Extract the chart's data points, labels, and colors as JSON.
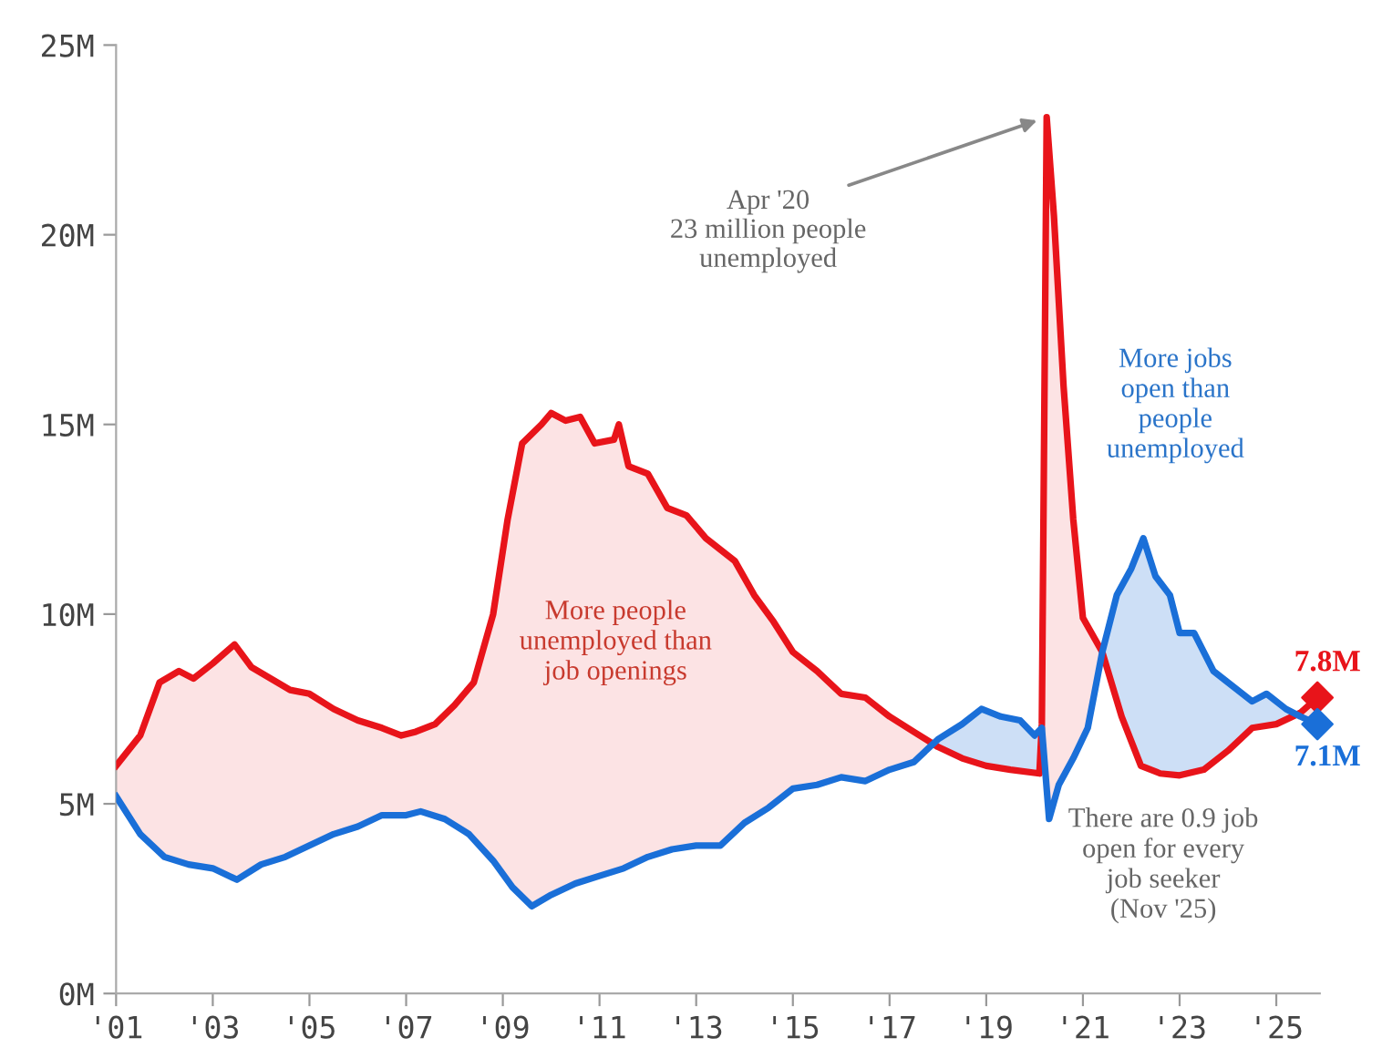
{
  "chart_data": {
    "type": "line",
    "x": [
      2001.0,
      2001.5,
      2001.9,
      2002.3,
      2002.6,
      2003.0,
      2003.45,
      2003.8,
      2004.2,
      2004.6,
      2005.0,
      2005.5,
      2006.0,
      2006.5,
      2006.9,
      2007.2,
      2007.6,
      2008.0,
      2008.4,
      2008.8,
      2009.1,
      2009.4,
      2009.8,
      2010.0,
      2010.3,
      2010.6,
      2010.9,
      2011.3,
      2011.4,
      2011.6,
      2012.0,
      2012.4,
      2012.8,
      2013.2,
      2013.5,
      2013.8,
      2014.2,
      2014.6,
      2015.0,
      2015.5,
      2016.0,
      2016.5,
      2017.0,
      2017.5,
      2018.0,
      2018.5,
      2019.0,
      2019.5,
      2020.1,
      2020.15,
      2020.25,
      2020.4,
      2020.6,
      2020.8,
      2021.0,
      2021.4,
      2021.8,
      2022.2,
      2022.6,
      2023.0,
      2023.5,
      2024.0,
      2024.5,
      2025.0,
      2025.5,
      2025.85
    ],
    "series": [
      {
        "color": "#e8141a",
        "values": [
          6.0,
          6.8,
          8.2,
          8.5,
          8.3,
          8.7,
          9.2,
          8.6,
          8.3,
          8.0,
          7.9,
          7.5,
          7.2,
          7.0,
          6.8,
          6.9,
          7.1,
          7.6,
          8.2,
          10.0,
          12.5,
          14.5,
          15.0,
          15.3,
          15.1,
          15.2,
          14.5,
          14.6,
          15.0,
          13.9,
          13.7,
          12.8,
          12.6,
          12.0,
          11.7,
          11.4,
          10.5,
          9.8,
          9.0,
          8.5,
          7.9,
          7.8,
          7.3,
          6.9,
          6.5,
          6.2,
          6.0,
          5.9,
          5.8,
          7.1,
          23.1,
          20.5,
          16.0,
          12.5,
          9.9,
          9.0,
          7.3,
          6.0,
          5.8,
          5.75,
          5.9,
          6.4,
          7.0,
          7.1,
          7.4,
          7.8
        ]
      },
      {
        "color": "#1a6fd8",
        "x": [
          2001.0,
          2001.5,
          2002.0,
          2002.5,
          2003.0,
          2003.5,
          2004.0,
          2004.5,
          2005.0,
          2005.5,
          2006.0,
          2006.5,
          2007.0,
          2007.3,
          2007.8,
          2008.3,
          2008.8,
          2009.2,
          2009.6,
          2010.0,
          2010.5,
          2011.0,
          2011.5,
          2012.0,
          2012.5,
          2013.0,
          2013.5,
          2014.0,
          2014.5,
          2015.0,
          2015.5,
          2016.0,
          2016.5,
          2017.0,
          2017.5,
          2018.0,
          2018.5,
          2018.9,
          2019.3,
          2019.7,
          2020.0,
          2020.15,
          2020.3,
          2020.5,
          2020.8,
          2021.1,
          2021.4,
          2021.7,
          2022.0,
          2022.25,
          2022.5,
          2022.8,
          2023.0,
          2023.3,
          2023.7,
          2024.0,
          2024.5,
          2024.8,
          2025.2,
          2025.5,
          2025.85
        ],
        "values": [
          5.2,
          4.2,
          3.6,
          3.4,
          3.3,
          3.0,
          3.4,
          3.6,
          3.9,
          4.2,
          4.4,
          4.7,
          4.7,
          4.8,
          4.6,
          4.2,
          3.5,
          2.8,
          2.3,
          2.6,
          2.9,
          3.1,
          3.3,
          3.6,
          3.8,
          3.9,
          3.9,
          4.5,
          4.9,
          5.4,
          5.5,
          5.7,
          5.6,
          5.9,
          6.1,
          6.7,
          7.1,
          7.5,
          7.3,
          7.2,
          6.8,
          7.0,
          4.6,
          5.5,
          6.2,
          7.0,
          9.0,
          10.5,
          11.2,
          12.0,
          11.0,
          10.5,
          9.5,
          9.5,
          8.5,
          8.2,
          7.7,
          7.9,
          7.5,
          7.3,
          7.1
        ]
      },
      {
        "type": "scatter",
        "marker": "diamond",
        "color": "#e8141a",
        "x": [
          2025.85
        ],
        "values": [
          7.8
        ],
        "value_labels": [
          "7.8M"
        ]
      },
      {
        "type": "scatter",
        "marker": "diamond",
        "color": "#1a6fd8",
        "x": [
          2025.85
        ],
        "values": [
          7.1
        ],
        "value_labels": [
          "7.1M"
        ]
      }
    ],
    "xlim": [
      2001,
      2025.9
    ],
    "xticks": [
      {
        "value": 2001,
        "label": "'01"
      },
      {
        "value": 2003,
        "label": "'03"
      },
      {
        "value": 2005,
        "label": "'05"
      },
      {
        "value": 2007,
        "label": "'07"
      },
      {
        "value": 2009,
        "label": "'09"
      },
      {
        "value": 2011,
        "label": "'11"
      },
      {
        "value": 2013,
        "label": "'13"
      },
      {
        "value": 2015,
        "label": "'15"
      },
      {
        "value": 2017,
        "label": "'17"
      },
      {
        "value": 2019,
        "label": "'19"
      },
      {
        "value": 2021,
        "label": "'21"
      },
      {
        "value": 2023,
        "label": "'23"
      },
      {
        "value": 2025,
        "label": "'25"
      }
    ],
    "grid": false,
    "legend": false,
    "ylim": [
      0,
      25
    ],
    "yticks": [
      {
        "value": 0,
        "label": "0M"
      },
      {
        "value": 5,
        "label": "5M"
      },
      {
        "value": 10,
        "label": "10M"
      },
      {
        "value": 15,
        "label": "15M"
      },
      {
        "value": 20,
        "label": "20M"
      },
      {
        "value": 25,
        "label": "25M"
      }
    ],
    "annotations": [
      {
        "text": "Apr '20\n23 million people\nunemployed",
        "x": 2020.25,
        "y": 23.1
      },
      "More people\nunemployed than\njob openings",
      "More jobs\nopen than\npeople\nunemployed",
      "There are 0.9 job\nopen for every\njob seeker\n(Nov '25)"
    ]
  }
}
